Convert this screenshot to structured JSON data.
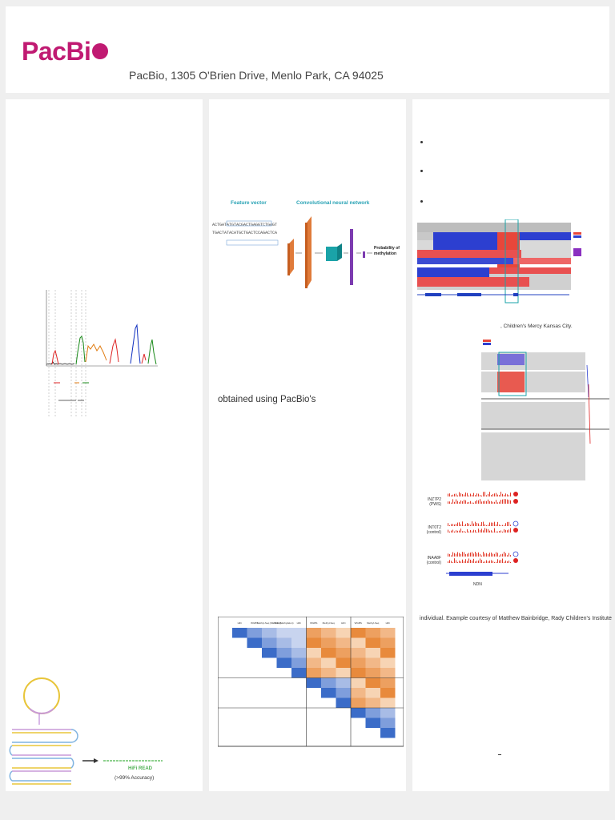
{
  "header": {
    "logo_text": "PacBi",
    "address": "PacBio, 1305 O'Brien Drive, Menlo Park, CA  94025",
    "brand_color": "#c01a72"
  },
  "col1": {
    "hifi_label": "HiFi READ",
    "hifi_accuracy": "(>99% Accuracy)"
  },
  "col2": {
    "feature_vector_label": "Feature vector",
    "cnn_label": "Convolutional neural network",
    "seq_top": "ACTGATATGTACGACTGAGGTCTGAGT",
    "seq_bottom": "TGACTATACATGCTGACTCCAGACTCA",
    "probability_label": "Probability of methylation",
    "body_text": "obtained using PacBio's",
    "matrix_headers": [
      "HiFi",
      "WGBS",
      "Methyl-Seq (NEBNext)",
      "HiFi (Methylation)",
      "HiFi",
      "WGBS",
      "Methyl-Seq",
      "HiFi",
      "WGBS",
      "Methyl-Seq",
      "HiFi"
    ]
  },
  "col3": {
    "credit1": ", Children's Mercy Kansas City.",
    "row_labels": [
      "INZ7P2 (PWS)",
      "INT0T2 (control)",
      "INAA8F (control)"
    ],
    "gene_label": "NDN",
    "credit2": "individual. Example courtesy of Matthew Bainbridge, Rady Children's Institute"
  }
}
